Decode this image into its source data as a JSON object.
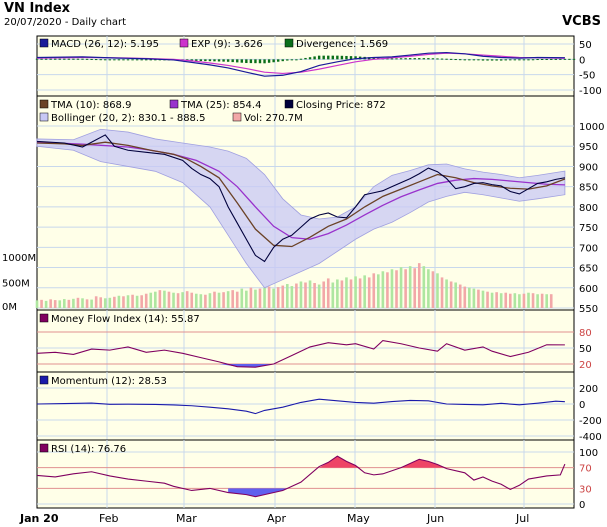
{
  "header": {
    "title": "VN Index",
    "subtitle": "20/07/2020 - Daily chart",
    "brand": "VCBS"
  },
  "colors": {
    "panel_bg": "#ffffe8",
    "band_fill": "#c8c8f5",
    "volume_up": "#aee6a0",
    "volume_down": "#f2a8a8",
    "tma10": "#6b4226",
    "tma25": "#9932cc",
    "closing": "#00003c",
    "macd": "#1a1a9a",
    "exp": "#cc33cc",
    "divergence": "#0a6e1a",
    "mfi": "#800060",
    "momentum": "#1a1aaa",
    "rsi": "#800060",
    "rsi_high_fill": "#ee4466",
    "rsi_low_fill": "#6060ee"
  },
  "x_axis": {
    "labels": [
      "Jan 20",
      "Feb",
      "Mar",
      "Apr",
      "May",
      "Jun",
      "Jul"
    ]
  },
  "panels": {
    "macd": {
      "legend": [
        {
          "text": "MACD (26, 12): 5.195",
          "color": "#1a1a9a"
        },
        {
          "text": "EXP (9): 3.626",
          "color": "#cc33cc"
        },
        {
          "text": "Divergence: 1.569",
          "color": "#0a6e1a"
        }
      ],
      "ticks": [
        "50",
        "0",
        "-50",
        "-100"
      ]
    },
    "price": {
      "legend_row1": [
        {
          "text": "TMA (10): 868.9",
          "color": "#6b4226"
        },
        {
          "text": "TMA (25): 854.4",
          "color": "#9932cc"
        },
        {
          "text": "Closing Price: 872",
          "color": "#00003c"
        }
      ],
      "legend_row2": [
        {
          "text": "Bollinger (20, 2): 830.1 - 888.5",
          "color": "#c8c8f5"
        },
        {
          "text": "Vol: 270.7M",
          "color": "#f2a8a8"
        }
      ],
      "ticks": [
        "1000",
        "950",
        "900",
        "850",
        "800",
        "750",
        "700",
        "650",
        "600",
        "550"
      ],
      "volume_ticks": [
        "1000M",
        "500M",
        "0M"
      ]
    },
    "mfi": {
      "legend": [
        {
          "text": "Money Flow Index (14): 55.87",
          "color": "#800060"
        }
      ],
      "ticks": [
        "80",
        "50",
        "20"
      ]
    },
    "momentum": {
      "legend": [
        {
          "text": "Momentum (12): 28.53",
          "color": "#1a1aaa"
        }
      ],
      "ticks": [
        "200",
        "0",
        "-200",
        "-400"
      ]
    },
    "rsi": {
      "legend": [
        {
          "text": "RSI (14): 76.76",
          "color": "#800060"
        }
      ],
      "ticks": [
        "100",
        "70",
        "30",
        "0"
      ]
    }
  },
  "chart_data": {
    "type": "line",
    "x": [
      "Jan 20",
      "Feb",
      "Mar",
      "Apr",
      "May",
      "Jun",
      "Jul"
    ],
    "xlim_trading_days": [
      0,
      118
    ],
    "ylim": [
      550,
      1000
    ],
    "volume_ylim_millions": [
      0,
      2000
    ],
    "series": [
      {
        "name": "Closing Price: 872",
        "points": [
          [
            0,
            962
          ],
          [
            6,
            958
          ],
          [
            10,
            948
          ],
          [
            15,
            978
          ],
          [
            17,
            950
          ],
          [
            20,
            940
          ],
          [
            24,
            935
          ],
          [
            28,
            930
          ],
          [
            32,
            915
          ],
          [
            34,
            895
          ],
          [
            36,
            880
          ],
          [
            38,
            870
          ],
          [
            40,
            850
          ],
          [
            42,
            800
          ],
          [
            44,
            760
          ],
          [
            46,
            720
          ],
          [
            48,
            680
          ],
          [
            50,
            665
          ],
          [
            52,
            700
          ],
          [
            54,
            720
          ],
          [
            56,
            730
          ],
          [
            58,
            750
          ],
          [
            60,
            770
          ],
          [
            62,
            780
          ],
          [
            64,
            785
          ],
          [
            66,
            775
          ],
          [
            68,
            773
          ],
          [
            70,
            800
          ],
          [
            72,
            830
          ],
          [
            74,
            835
          ],
          [
            76,
            840
          ],
          [
            78,
            850
          ],
          [
            80,
            860
          ],
          [
            82,
            870
          ],
          [
            84,
            882
          ],
          [
            86,
            896
          ],
          [
            88,
            887
          ],
          [
            90,
            870
          ],
          [
            92,
            845
          ],
          [
            94,
            850
          ],
          [
            96,
            858
          ],
          [
            98,
            860
          ],
          [
            100,
            855
          ],
          [
            102,
            852
          ],
          [
            104,
            838
          ],
          [
            106,
            832
          ],
          [
            108,
            845
          ],
          [
            110,
            858
          ],
          [
            112,
            862
          ],
          [
            114,
            868
          ],
          [
            116,
            872
          ]
        ]
      },
      {
        "name": "TMA (10): 868.9",
        "points": [
          [
            0,
            958
          ],
          [
            6,
            956
          ],
          [
            10,
            952
          ],
          [
            15,
            960
          ],
          [
            20,
            952
          ],
          [
            25,
            940
          ],
          [
            30,
            930
          ],
          [
            33,
            918
          ],
          [
            36,
            900
          ],
          [
            40,
            872
          ],
          [
            44,
            810
          ],
          [
            48,
            745
          ],
          [
            52,
            705
          ],
          [
            56,
            702
          ],
          [
            60,
            725
          ],
          [
            64,
            752
          ],
          [
            68,
            770
          ],
          [
            72,
            800
          ],
          [
            76,
            826
          ],
          [
            80,
            844
          ],
          [
            84,
            862
          ],
          [
            88,
            880
          ],
          [
            92,
            872
          ],
          [
            96,
            860
          ],
          [
            100,
            852
          ],
          [
            104,
            846
          ],
          [
            108,
            844
          ],
          [
            112,
            852
          ],
          [
            116,
            868.9
          ]
        ]
      },
      {
        "name": "TMA (25): 854.4",
        "points": [
          [
            0,
            960
          ],
          [
            10,
            955
          ],
          [
            20,
            948
          ],
          [
            25,
            940
          ],
          [
            30,
            930
          ],
          [
            35,
            915
          ],
          [
            40,
            888
          ],
          [
            44,
            850
          ],
          [
            48,
            800
          ],
          [
            52,
            752
          ],
          [
            56,
            724
          ],
          [
            60,
            720
          ],
          [
            64,
            734
          ],
          [
            68,
            755
          ],
          [
            72,
            780
          ],
          [
            76,
            804
          ],
          [
            80,
            825
          ],
          [
            84,
            842
          ],
          [
            88,
            858
          ],
          [
            92,
            866
          ],
          [
            96,
            870
          ],
          [
            100,
            868
          ],
          [
            104,
            864
          ],
          [
            108,
            860
          ],
          [
            112,
            856
          ],
          [
            116,
            854.4
          ]
        ]
      },
      {
        "name": "Bollinger (20, 2): 830.1 - 888.5",
        "upper": [
          [
            0,
            968
          ],
          [
            8,
            966
          ],
          [
            14,
            992
          ],
          [
            20,
            985
          ],
          [
            26,
            968
          ],
          [
            32,
            958
          ],
          [
            38,
            948
          ],
          [
            42,
            938
          ],
          [
            46,
            920
          ],
          [
            50,
            880
          ],
          [
            54,
            820
          ],
          [
            58,
            780
          ],
          [
            62,
            770
          ],
          [
            66,
            775
          ],
          [
            70,
            800
          ],
          [
            74,
            850
          ],
          [
            78,
            878
          ],
          [
            82,
            890
          ],
          [
            86,
            904
          ],
          [
            90,
            906
          ],
          [
            94,
            894
          ],
          [
            98,
            886
          ],
          [
            102,
            880
          ],
          [
            106,
            872
          ],
          [
            110,
            878
          ],
          [
            116,
            888.5
          ]
        ],
        "lower": [
          [
            0,
            950
          ],
          [
            8,
            940
          ],
          [
            14,
            912
          ],
          [
            20,
            900
          ],
          [
            26,
            888
          ],
          [
            32,
            860
          ],
          [
            38,
            800
          ],
          [
            42,
            730
          ],
          [
            46,
            660
          ],
          [
            50,
            600
          ],
          [
            54,
            620
          ],
          [
            58,
            640
          ],
          [
            62,
            660
          ],
          [
            66,
            690
          ],
          [
            70,
            720
          ],
          [
            74,
            745
          ],
          [
            78,
            762
          ],
          [
            82,
            786
          ],
          [
            86,
            812
          ],
          [
            90,
            826
          ],
          [
            94,
            836
          ],
          [
            98,
            830
          ],
          [
            102,
            822
          ],
          [
            106,
            814
          ],
          [
            110,
            820
          ],
          [
            116,
            830.1
          ]
        ]
      }
    ],
    "volume_millions": [
      150,
      160,
      140,
      170,
      155,
      150,
      175,
      160,
      180,
      200,
      190,
      170,
      165,
      230,
      210,
      190,
      200,
      220,
      240,
      230,
      250,
      260,
      240,
      250,
      280,
      300,
      320,
      350,
      340,
      320,
      300,
      290,
      310,
      330,
      300,
      280,
      270,
      260,
      290,
      320,
      300,
      310,
      330,
      350,
      320,
      380,
      340,
      400,
      360,
      380,
      400,
      420,
      380,
      410,
      440,
      470,
      430,
      480,
      520,
      500,
      540,
      490,
      460,
      520,
      580,
      500,
      560,
      540,
      600,
      560,
      620,
      580,
      640,
      600,
      680,
      660,
      720,
      700,
      760,
      740,
      800,
      760,
      820,
      780,
      880,
      820,
      760,
      720,
      680,
      600,
      560,
      520,
      500,
      460,
      420,
      400,
      380,
      360,
      340,
      320,
      300,
      310,
      290,
      300,
      280,
      290,
      270,
      280,
      300,
      290,
      270,
      280,
      270,
      270.7
    ],
    "volume_up_pattern": [
      1,
      0,
      1,
      0,
      0,
      1,
      1,
      0,
      1,
      0
    ]
  }
}
